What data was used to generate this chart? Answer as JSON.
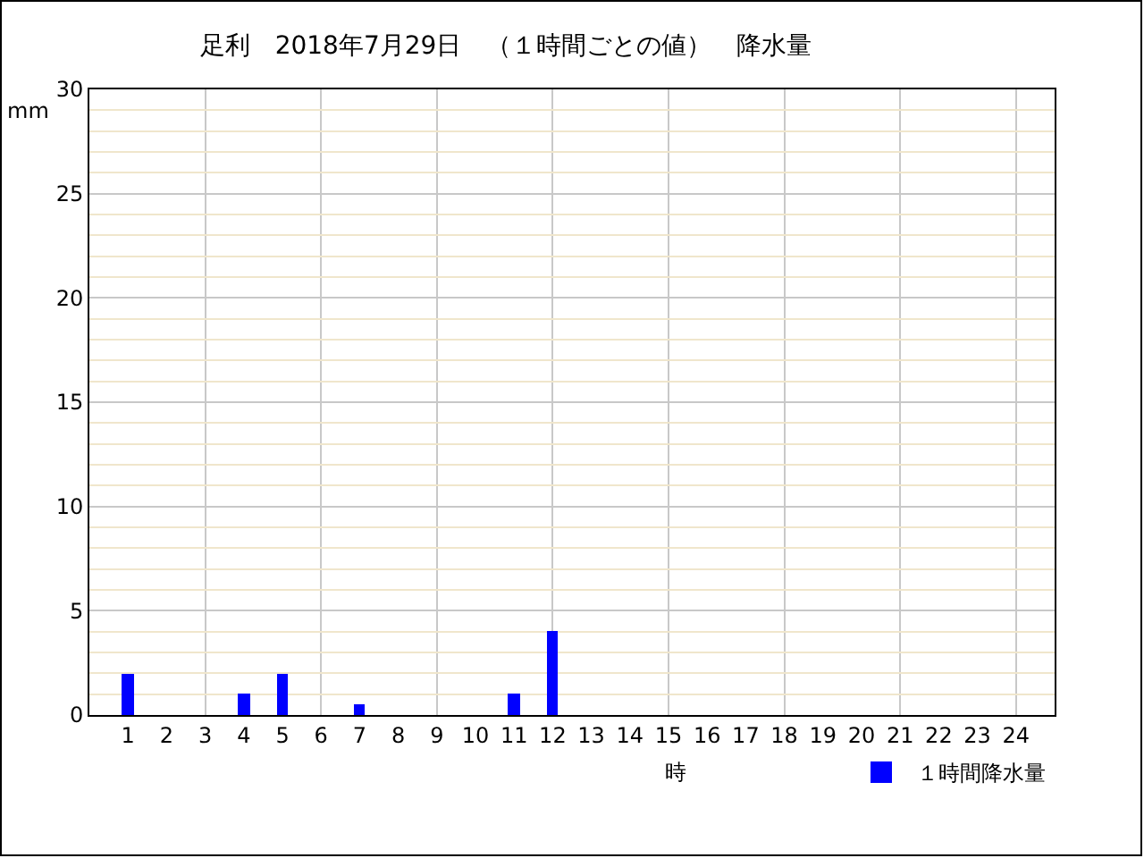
{
  "chart_data": {
    "type": "bar",
    "title": "足利　2018年7月29日　（１時間ごとの値）　降水量",
    "xlabel": "時",
    "ylabel": "mm",
    "x": [
      1,
      2,
      3,
      4,
      5,
      6,
      7,
      8,
      9,
      10,
      11,
      12,
      13,
      14,
      15,
      16,
      17,
      18,
      19,
      20,
      21,
      22,
      23,
      24
    ],
    "series": [
      {
        "name": "１時間降水量",
        "color": "#0000ff",
        "values": [
          2,
          0,
          0,
          1,
          2,
          0,
          0.5,
          0,
          0,
          0,
          1,
          4,
          0,
          0,
          0,
          0,
          0,
          0,
          0,
          0,
          0,
          0,
          0,
          0
        ]
      }
    ],
    "xlim": [
      0,
      25
    ],
    "xticks": [
      1,
      2,
      3,
      4,
      5,
      6,
      7,
      8,
      9,
      10,
      11,
      12,
      13,
      14,
      15,
      16,
      17,
      18,
      19,
      20,
      21,
      22,
      23,
      24
    ],
    "ylim": [
      0,
      30
    ],
    "yticks": [
      0,
      5,
      10,
      15,
      20,
      25,
      30
    ],
    "grid": true,
    "legend": "bottom right"
  }
}
